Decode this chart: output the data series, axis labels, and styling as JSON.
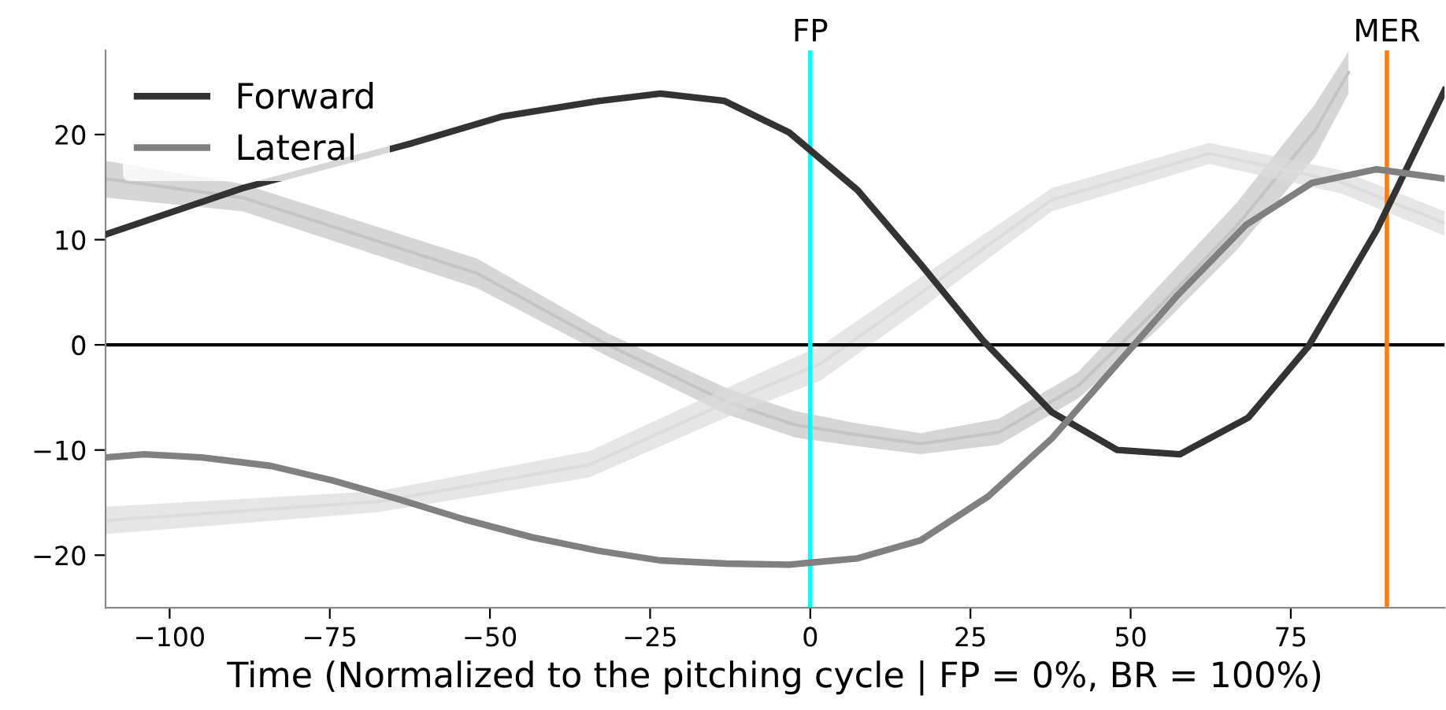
{
  "chart_data": {
    "type": "line",
    "xlabel": "Time (Normalized to the pitching cycle | FP = 0%, BR = 100%)",
    "xlim": [
      -110,
      99
    ],
    "xticks": [
      -100,
      -75,
      -50,
      -25,
      0,
      25,
      50,
      75
    ],
    "ylim": [
      -25,
      28
    ],
    "yticks": [
      -20,
      -10,
      0,
      10,
      20
    ],
    "grid": false,
    "legend": "top left",
    "series": [
      {
        "type": "line",
        "color": "#c4c4c4",
        "x": [
          -110,
          -88.6,
          -52,
          -31.6,
          -13.1,
          -2.4,
          6.7,
          17.2,
          29.5,
          41.8,
          54.1,
          66.4,
          78.8,
          84
        ],
        "values": [
          15.8,
          14.0,
          6.8,
          0.0,
          -5.4,
          -7.6,
          -8.5,
          -9.4,
          -8.3,
          -3.9,
          3.4,
          11.2,
          20.4,
          25.9
        ],
        "lower": [
          14.0,
          12.7,
          5.4,
          -1.1,
          -6.6,
          -8.8,
          -9.6,
          -10.4,
          -9.5,
          -5.1,
          1.4,
          8.9,
          17.9,
          23.9
        ],
        "upper": [
          17.5,
          15.3,
          8.2,
          1.1,
          -4.1,
          -6.3,
          -7.4,
          -8.4,
          -7.0,
          -2.6,
          5.4,
          13.4,
          22.9,
          27.9
        ]
      },
      {
        "type": "line",
        "color": "#dcdcdc",
        "x": [
          -110,
          -67.3,
          -34.5,
          -13.1,
          1.6,
          17.2,
          37.7,
          62.3,
          82.8,
          99
        ],
        "values": [
          -16.7,
          -14.9,
          -11.4,
          -5.5,
          -1.8,
          4.9,
          13.8,
          18.2,
          15.5,
          11.6
        ],
        "lower": [
          -18.0,
          -15.9,
          -12.6,
          -6.9,
          -3.4,
          3.4,
          12.7,
          17.2,
          14.4,
          10.4
        ],
        "upper": [
          -15.4,
          -13.9,
          -10.1,
          -4.1,
          -0.1,
          6.4,
          14.9,
          19.2,
          16.6,
          12.7
        ]
      },
      {
        "name": "Forward",
        "color": "#333333",
        "x": [
          -110,
          -88.6,
          -62,
          -48.2,
          -32.9,
          -23.4,
          -13.4,
          -3.3,
          7.4,
          17.2,
          27,
          37.7,
          47.9,
          57.7,
          68.4,
          77.8,
          88.4,
          99
        ],
        "values": [
          10.5,
          14.9,
          19.2,
          21.7,
          23.2,
          23.9,
          23.2,
          20.2,
          14.7,
          7.7,
          0.4,
          -6.4,
          -10.0,
          -10.4,
          -6.9,
          -0.1,
          10.9,
          24.2
        ]
      },
      {
        "name": "Lateral",
        "color": "#808080",
        "x": [
          -110,
          -104,
          -95,
          -84.3,
          -74.5,
          -64.7,
          -54,
          -43.4,
          -32.9,
          -23.4,
          -13.1,
          -3.3,
          7.4,
          17.2,
          27.8,
          37.7,
          47.5,
          57.3,
          68,
          78.3,
          88.4,
          99
        ],
        "values": [
          -10.7,
          -10.4,
          -10.7,
          -11.5,
          -12.9,
          -14.6,
          -16.6,
          -18.3,
          -19.6,
          -20.5,
          -20.8,
          -20.9,
          -20.3,
          -18.6,
          -14.4,
          -8.9,
          -2.1,
          4.7,
          11.4,
          15.4,
          16.7,
          15.8
        ]
      }
    ],
    "ref_lines": [
      {
        "axis": "y",
        "value": 0,
        "color": "#000000"
      },
      {
        "axis": "x",
        "value": 0,
        "label": "FP",
        "color": "#00ffff"
      },
      {
        "axis": "x",
        "value": 90,
        "label": "MER",
        "color": "#ff7f0e"
      }
    ]
  }
}
